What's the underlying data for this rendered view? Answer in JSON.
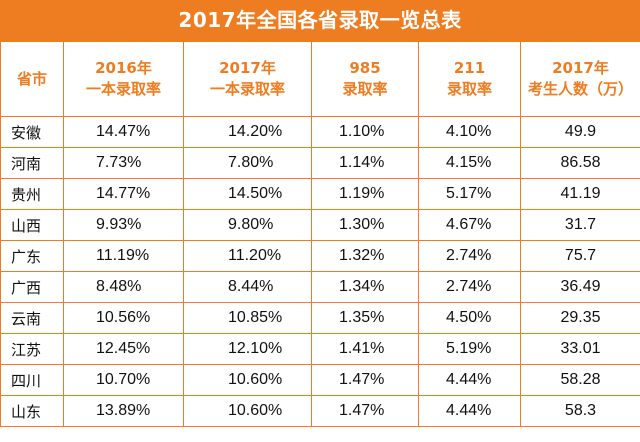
{
  "title": "2017年全国各省录取一览总表",
  "colors": {
    "accent": "#ee7d22",
    "title_text": "#ffffff",
    "cell_text": "#111111"
  },
  "table": {
    "headers": [
      {
        "line1": "省市",
        "line2": ""
      },
      {
        "line1": "2016年",
        "line2": "一本录取率"
      },
      {
        "line1": "2017年",
        "line2": "一本录取率"
      },
      {
        "line1": "985",
        "line2": "录取率"
      },
      {
        "line1": "211",
        "line2": "录取率"
      },
      {
        "line1": "2017年",
        "line2": "考生人数（万）"
      }
    ],
    "rows": [
      {
        "province": "安徽",
        "rate_2016": "14.47%",
        "rate_2017": "14.20%",
        "rate_985": "1.10%",
        "rate_211": "4.10%",
        "examinees": "49.9"
      },
      {
        "province": "河南",
        "rate_2016": "7.73%",
        "rate_2017": "7.80%",
        "rate_985": "1.14%",
        "rate_211": "4.15%",
        "examinees": "86.58"
      },
      {
        "province": "贵州",
        "rate_2016": "14.77%",
        "rate_2017": "14.50%",
        "rate_985": "1.19%",
        "rate_211": "5.17%",
        "examinees": "41.19"
      },
      {
        "province": "山西",
        "rate_2016": "9.93%",
        "rate_2017": "9.80%",
        "rate_985": "1.30%",
        "rate_211": "4.67%",
        "examinees": "31.7"
      },
      {
        "province": "广东",
        "rate_2016": "11.19%",
        "rate_2017": "11.20%",
        "rate_985": "1.32%",
        "rate_211": "2.74%",
        "examinees": "75.7"
      },
      {
        "province": "广西",
        "rate_2016": "8.48%",
        "rate_2017": "8.44%",
        "rate_985": "1.34%",
        "rate_211": "2.74%",
        "examinees": "36.49"
      },
      {
        "province": "云南",
        "rate_2016": "10.56%",
        "rate_2017": "10.85%",
        "rate_985": "1.35%",
        "rate_211": "4.50%",
        "examinees": "29.35"
      },
      {
        "province": "江苏",
        "rate_2016": "12.45%",
        "rate_2017": "12.10%",
        "rate_985": "1.41%",
        "rate_211": "5.19%",
        "examinees": "33.01"
      },
      {
        "province": "四川",
        "rate_2016": "10.70%",
        "rate_2017": "10.60%",
        "rate_985": "1.47%",
        "rate_211": "4.44%",
        "examinees": "58.28"
      },
      {
        "province": "山东",
        "rate_2016": "13.89%",
        "rate_2017": "10.60%",
        "rate_985": "1.47%",
        "rate_211": "4.44%",
        "examinees": "58.3"
      }
    ]
  }
}
